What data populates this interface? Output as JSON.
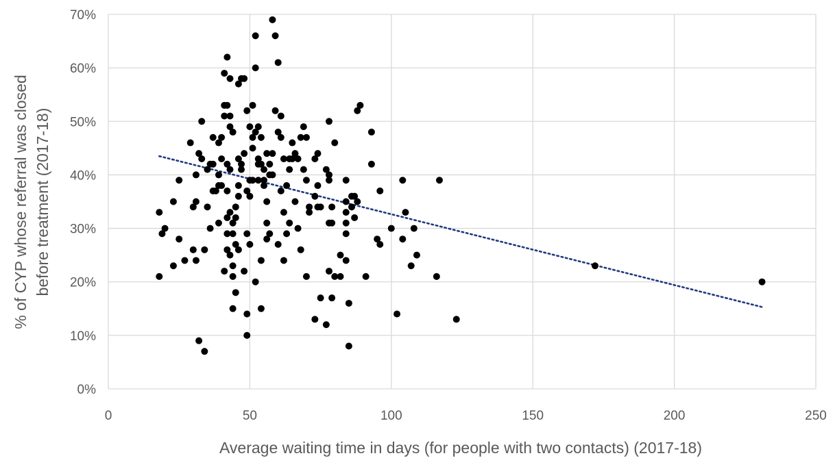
{
  "chart_data": {
    "type": "scatter",
    "xlabel": "Average waiting time in days (for people with two contacts) (2017-18)",
    "ylabel_lines": [
      "% of CYP whose referral was closed",
      "before treatment (2017-18)"
    ],
    "xlim": [
      0,
      250
    ],
    "ylim": [
      0,
      70
    ],
    "x_ticks": [
      0,
      50,
      100,
      150,
      200,
      250
    ],
    "y_ticks": [
      0,
      10,
      20,
      30,
      40,
      50,
      60,
      70
    ],
    "x_tick_labels": [
      "0",
      "50",
      "100",
      "150",
      "200",
      "250"
    ],
    "y_tick_labels": [
      "0%",
      "10%",
      "20%",
      "30%",
      "40%",
      "50%",
      "60%",
      "70%"
    ],
    "grid": "vertical and horizontal",
    "point_color": "#000000",
    "trendline": {
      "type": "linear",
      "color": "#1f3a80",
      "style": "dotted",
      "x": [
        18,
        231
      ],
      "y": [
        43.5,
        15.3
      ]
    },
    "points": [
      [
        18,
        33
      ],
      [
        18,
        21
      ],
      [
        19,
        29
      ],
      [
        20,
        30
      ],
      [
        23,
        35
      ],
      [
        23,
        23
      ],
      [
        25,
        39
      ],
      [
        25,
        28
      ],
      [
        27,
        24
      ],
      [
        29,
        46
      ],
      [
        30,
        34
      ],
      [
        30,
        26
      ],
      [
        31,
        40
      ],
      [
        31,
        35
      ],
      [
        31,
        24
      ],
      [
        32,
        44
      ],
      [
        32,
        9
      ],
      [
        33,
        43
      ],
      [
        33,
        50
      ],
      [
        34,
        26
      ],
      [
        34,
        7
      ],
      [
        35,
        41
      ],
      [
        35,
        34
      ],
      [
        36,
        42
      ],
      [
        36,
        30
      ],
      [
        37,
        47
      ],
      [
        37,
        42
      ],
      [
        37,
        37
      ],
      [
        38,
        37
      ],
      [
        39,
        46
      ],
      [
        39,
        40
      ],
      [
        39,
        38
      ],
      [
        39,
        31
      ],
      [
        40,
        47
      ],
      [
        40,
        43
      ],
      [
        40,
        38
      ],
      [
        41,
        59
      ],
      [
        41,
        53
      ],
      [
        41,
        51
      ],
      [
        41,
        22
      ],
      [
        42,
        62
      ],
      [
        42,
        53
      ],
      [
        42,
        42
      ],
      [
        42,
        37
      ],
      [
        42,
        32
      ],
      [
        42,
        29
      ],
      [
        42,
        26
      ],
      [
        43,
        58
      ],
      [
        43,
        51
      ],
      [
        43,
        49
      ],
      [
        43,
        41
      ],
      [
        43,
        33
      ],
      [
        43,
        25
      ],
      [
        44,
        48
      ],
      [
        44,
        31
      ],
      [
        44,
        29
      ],
      [
        44,
        23
      ],
      [
        44,
        21
      ],
      [
        44,
        15
      ],
      [
        45,
        34
      ],
      [
        45,
        32
      ],
      [
        45,
        27
      ],
      [
        45,
        18
      ],
      [
        46,
        57
      ],
      [
        46,
        43
      ],
      [
        46,
        38
      ],
      [
        46,
        36
      ],
      [
        46,
        26
      ],
      [
        47,
        58
      ],
      [
        47,
        42
      ],
      [
        47,
        41
      ],
      [
        48,
        58
      ],
      [
        48,
        44
      ],
      [
        48,
        22
      ],
      [
        49,
        52
      ],
      [
        49,
        37
      ],
      [
        49,
        29
      ],
      [
        49,
        14
      ],
      [
        49,
        10
      ],
      [
        50,
        49
      ],
      [
        50,
        39
      ],
      [
        50,
        36
      ],
      [
        50,
        27
      ],
      [
        51,
        53
      ],
      [
        51,
        47
      ],
      [
        51,
        45
      ],
      [
        51,
        39
      ],
      [
        52,
        66
      ],
      [
        52,
        60
      ],
      [
        52,
        48
      ],
      [
        52,
        20
      ],
      [
        53,
        49
      ],
      [
        53,
        43
      ],
      [
        53,
        42
      ],
      [
        53,
        39
      ],
      [
        54,
        47
      ],
      [
        54,
        42
      ],
      [
        54,
        24
      ],
      [
        54,
        15
      ],
      [
        55,
        41
      ],
      [
        55,
        39
      ],
      [
        55,
        38
      ],
      [
        56,
        44
      ],
      [
        56,
        35
      ],
      [
        56,
        31
      ],
      [
        56,
        28
      ],
      [
        57,
        42
      ],
      [
        57,
        40
      ],
      [
        57,
        29
      ],
      [
        58,
        69
      ],
      [
        58,
        44
      ],
      [
        58,
        40
      ],
      [
        59,
        66
      ],
      [
        59,
        52
      ],
      [
        60,
        61
      ],
      [
        60,
        48
      ],
      [
        60,
        27
      ],
      [
        61,
        51
      ],
      [
        61,
        47
      ],
      [
        61,
        37
      ],
      [
        62,
        43
      ],
      [
        62,
        33
      ],
      [
        62,
        24
      ],
      [
        63,
        38
      ],
      [
        63,
        29
      ],
      [
        64,
        43
      ],
      [
        64,
        41
      ],
      [
        64,
        31
      ],
      [
        65,
        46
      ],
      [
        65,
        43
      ],
      [
        66,
        35
      ],
      [
        66,
        44
      ],
      [
        67,
        43
      ],
      [
        67,
        30
      ],
      [
        68,
        47
      ],
      [
        68,
        26
      ],
      [
        69,
        49
      ],
      [
        69,
        41
      ],
      [
        70,
        47
      ],
      [
        70,
        39
      ],
      [
        70,
        21
      ],
      [
        71,
        34
      ],
      [
        71,
        33
      ],
      [
        73,
        43
      ],
      [
        73,
        36
      ],
      [
        73,
        13
      ],
      [
        74,
        44
      ],
      [
        74,
        38
      ],
      [
        74,
        34
      ],
      [
        75,
        34
      ],
      [
        75,
        17
      ],
      [
        77,
        41
      ],
      [
        77,
        12
      ],
      [
        78,
        50
      ],
      [
        78,
        40
      ],
      [
        78,
        39
      ],
      [
        78,
        31
      ],
      [
        78,
        22
      ],
      [
        79,
        34
      ],
      [
        79,
        31
      ],
      [
        79,
        17
      ],
      [
        80,
        46
      ],
      [
        80,
        21
      ],
      [
        82,
        25
      ],
      [
        82,
        21
      ],
      [
        84,
        39
      ],
      [
        84,
        35
      ],
      [
        84,
        33
      ],
      [
        84,
        31
      ],
      [
        84,
        29
      ],
      [
        84,
        24
      ],
      [
        85,
        16
      ],
      [
        85,
        8
      ],
      [
        86,
        36
      ],
      [
        86,
        34
      ],
      [
        87,
        36
      ],
      [
        87,
        32
      ],
      [
        88,
        52
      ],
      [
        88,
        35
      ],
      [
        89,
        53
      ],
      [
        91,
        21
      ],
      [
        93,
        48
      ],
      [
        93,
        42
      ],
      [
        95,
        28
      ],
      [
        96,
        37
      ],
      [
        96,
        27
      ],
      [
        100,
        30
      ],
      [
        102,
        14
      ],
      [
        104,
        39
      ],
      [
        104,
        28
      ],
      [
        105,
        33
      ],
      [
        107,
        23
      ],
      [
        108,
        30
      ],
      [
        109,
        25
      ],
      [
        116,
        21
      ],
      [
        117,
        39
      ],
      [
        123,
        13
      ],
      [
        172,
        23
      ],
      [
        231,
        20
      ]
    ]
  }
}
